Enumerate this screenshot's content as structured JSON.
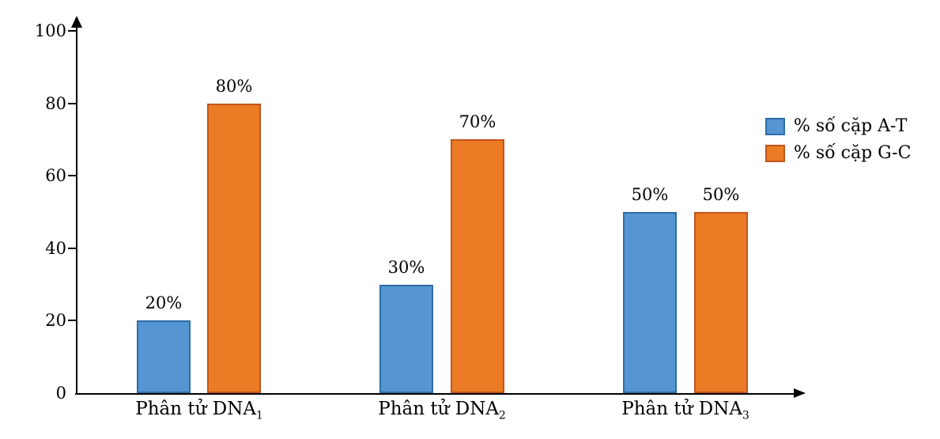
{
  "chart_data": {
    "type": "bar",
    "title": "",
    "background": "#ffffff",
    "axis_color": "#000000",
    "text_color": "#000000",
    "grid": false,
    "legend_position": "right",
    "ylim": [
      0,
      100
    ],
    "y_ticks": [
      0,
      20,
      40,
      60,
      80,
      100
    ],
    "categories": [
      {
        "text": "Phân tử DNA",
        "sub": "1"
      },
      {
        "text": "Phân tử DNA",
        "sub": "2"
      },
      {
        "text": "Phân tử DNA",
        "sub": "3"
      }
    ],
    "series": [
      {
        "name": "% số cặp A-T",
        "fill": "#5495d2",
        "border": "#2e6da8",
        "values": [
          20,
          30,
          50
        ],
        "labels": [
          "20%",
          "30%",
          "50%"
        ]
      },
      {
        "name": "% số cặp G-C",
        "fill": "#ec7b25",
        "border": "#c2561c",
        "values": [
          80,
          70,
          50
        ],
        "labels": [
          "80%",
          "70%",
          "50%"
        ]
      }
    ]
  }
}
